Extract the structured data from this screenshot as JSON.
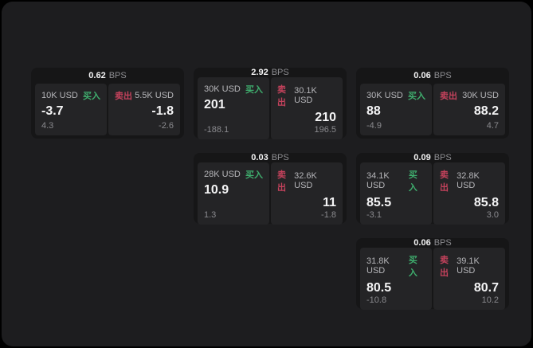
{
  "app": {
    "background": "#000000",
    "surface_color": "#1d1d1f"
  },
  "labels": {
    "buy": "买入",
    "sell": "卖出",
    "bps_unit": "BPS"
  },
  "colors": {
    "buy_green": "#3fae6e",
    "sell_red": "#c4425c",
    "card_bg": "#161617",
    "panel_bg": "#242426",
    "value_white": "#f4f4f5",
    "muted_gray": "#8d8d91"
  },
  "cards": [
    {
      "bps": "0.62",
      "col": 0,
      "row": 0,
      "buy": {
        "amount": "10K USD",
        "price": "-3.7",
        "delta": "4.3"
      },
      "sell": {
        "amount": "5.5K USD",
        "price": "-1.8",
        "delta": "-2.6"
      }
    },
    {
      "bps": "2.92",
      "col": 1,
      "row": 0,
      "buy": {
        "amount": "30K USD",
        "price": "201",
        "delta": "-188.1"
      },
      "sell": {
        "amount": "30.1K USD",
        "price": "210",
        "delta": "196.5"
      }
    },
    {
      "bps": "0.06",
      "col": 2,
      "row": 0,
      "buy": {
        "amount": "30K USD",
        "price": "88",
        "delta": "-4.9"
      },
      "sell": {
        "amount": "30K USD",
        "price": "88.2",
        "delta": "4.7"
      }
    },
    {
      "bps": "0.03",
      "col": 1,
      "row": 1,
      "buy": {
        "amount": "28K USD",
        "price": "10.9",
        "delta": "1.3"
      },
      "sell": {
        "amount": "32.6K USD",
        "price": "11",
        "delta": "-1.8"
      }
    },
    {
      "bps": "0.09",
      "col": 2,
      "row": 1,
      "buy": {
        "amount": "34.1K USD",
        "price": "85.5",
        "delta": "-3.1"
      },
      "sell": {
        "amount": "32.8K USD",
        "price": "85.8",
        "delta": "3.0"
      }
    },
    {
      "bps": "0.06",
      "col": 2,
      "row": 2,
      "buy": {
        "amount": "31.8K USD",
        "price": "80.5",
        "delta": "-10.8"
      },
      "sell": {
        "amount": "39.1K USD",
        "price": "80.7",
        "delta": "10.2"
      }
    }
  ]
}
